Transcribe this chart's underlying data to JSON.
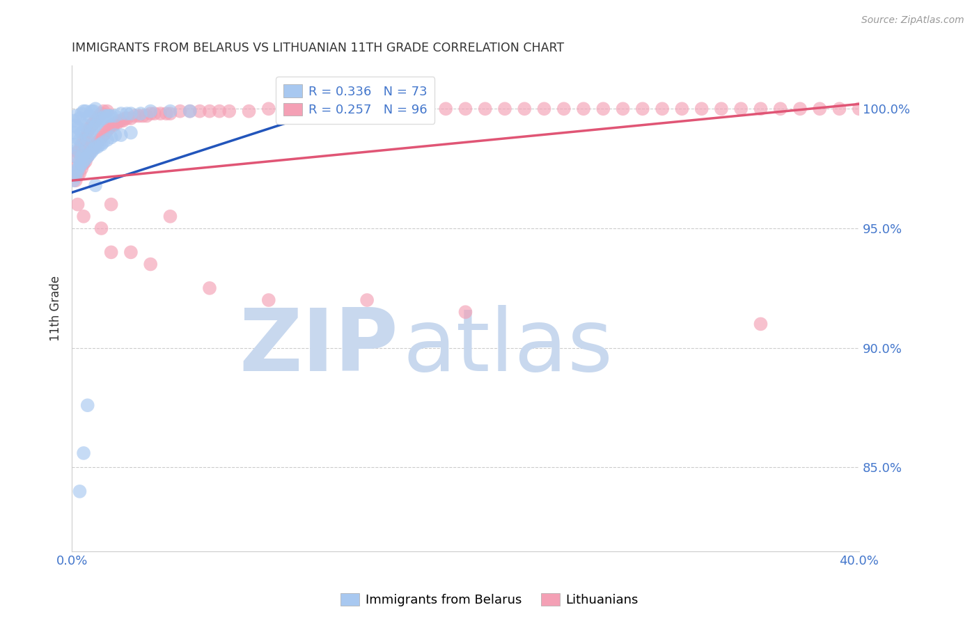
{
  "title": "IMMIGRANTS FROM BELARUS VS LITHUANIAN 11TH GRADE CORRELATION CHART",
  "source": "Source: ZipAtlas.com",
  "ylabel": "11th Grade",
  "ytick_labels": [
    "100.0%",
    "95.0%",
    "90.0%",
    "85.0%"
  ],
  "ytick_values": [
    1.0,
    0.95,
    0.9,
    0.85
  ],
  "xlim": [
    0.0,
    0.4
  ],
  "ylim": [
    0.815,
    1.018
  ],
  "legend_entry1": "R = 0.336   N = 73",
  "legend_entry2": "R = 0.257   N = 96",
  "color_blue": "#A8C8F0",
  "color_pink": "#F4A0B5",
  "line_blue": "#2255BB",
  "line_pink": "#E05575",
  "axis_label_color": "#4477CC",
  "watermark_zip": "ZIP",
  "watermark_atlas": "atlas",
  "watermark_color_zip": "#C8D8EE",
  "watermark_color_atlas": "#C8D8EE",
  "blue_scatter_x": [
    0.001,
    0.001,
    0.001,
    0.002,
    0.002,
    0.002,
    0.002,
    0.003,
    0.003,
    0.003,
    0.004,
    0.004,
    0.004,
    0.005,
    0.005,
    0.005,
    0.006,
    0.006,
    0.006,
    0.007,
    0.007,
    0.007,
    0.008,
    0.008,
    0.009,
    0.009,
    0.01,
    0.01,
    0.011,
    0.011,
    0.012,
    0.012,
    0.013,
    0.014,
    0.015,
    0.016,
    0.017,
    0.018,
    0.019,
    0.02,
    0.022,
    0.025,
    0.028,
    0.03,
    0.035,
    0.04,
    0.05,
    0.06,
    0.001,
    0.002,
    0.003,
    0.004,
    0.005,
    0.006,
    0.007,
    0.008,
    0.009,
    0.01,
    0.011,
    0.012,
    0.013,
    0.014,
    0.015,
    0.016,
    0.018,
    0.02,
    0.022,
    0.025,
    0.03,
    0.012,
    0.008,
    0.006,
    0.004
  ],
  "blue_scatter_y": [
    0.99,
    0.985,
    0.995,
    0.98,
    0.988,
    0.993,
    0.997,
    0.975,
    0.983,
    0.992,
    0.978,
    0.987,
    0.996,
    0.98,
    0.99,
    0.998,
    0.982,
    0.991,
    0.999,
    0.985,
    0.993,
    0.999,
    0.987,
    0.995,
    0.989,
    0.997,
    0.991,
    0.999,
    0.992,
    0.999,
    0.993,
    1.0,
    0.994,
    0.995,
    0.996,
    0.996,
    0.997,
    0.997,
    0.997,
    0.997,
    0.997,
    0.998,
    0.998,
    0.998,
    0.998,
    0.999,
    0.999,
    0.999,
    0.97,
    0.972,
    0.974,
    0.976,
    0.977,
    0.978,
    0.979,
    0.98,
    0.981,
    0.982,
    0.983,
    0.984,
    0.984,
    0.985,
    0.985,
    0.986,
    0.987,
    0.988,
    0.989,
    0.989,
    0.99,
    0.968,
    0.876,
    0.856,
    0.84
  ],
  "pink_scatter_x": [
    0.001,
    0.002,
    0.002,
    0.003,
    0.003,
    0.004,
    0.004,
    0.005,
    0.005,
    0.006,
    0.006,
    0.007,
    0.007,
    0.008,
    0.008,
    0.009,
    0.009,
    0.01,
    0.01,
    0.011,
    0.011,
    0.012,
    0.012,
    0.013,
    0.013,
    0.014,
    0.014,
    0.015,
    0.015,
    0.016,
    0.016,
    0.017,
    0.018,
    0.018,
    0.019,
    0.02,
    0.021,
    0.022,
    0.023,
    0.024,
    0.025,
    0.026,
    0.027,
    0.028,
    0.03,
    0.032,
    0.034,
    0.036,
    0.038,
    0.04,
    0.042,
    0.045,
    0.048,
    0.05,
    0.055,
    0.06,
    0.065,
    0.07,
    0.075,
    0.08,
    0.09,
    0.1,
    0.11,
    0.12,
    0.13,
    0.14,
    0.15,
    0.16,
    0.17,
    0.18,
    0.19,
    0.2,
    0.21,
    0.22,
    0.23,
    0.24,
    0.25,
    0.26,
    0.27,
    0.28,
    0.29,
    0.3,
    0.31,
    0.32,
    0.33,
    0.34,
    0.35,
    0.36,
    0.37,
    0.38,
    0.39,
    0.4,
    0.003,
    0.006,
    0.015,
    0.03
  ],
  "pink_scatter_y": [
    0.975,
    0.97,
    0.98,
    0.972,
    0.982,
    0.973,
    0.983,
    0.975,
    0.985,
    0.977,
    0.987,
    0.978,
    0.988,
    0.98,
    0.99,
    0.982,
    0.992,
    0.983,
    0.993,
    0.984,
    0.994,
    0.985,
    0.995,
    0.986,
    0.996,
    0.987,
    0.997,
    0.988,
    0.998,
    0.989,
    0.999,
    0.99,
    0.991,
    0.999,
    0.992,
    0.993,
    0.993,
    0.994,
    0.994,
    0.995,
    0.995,
    0.995,
    0.996,
    0.996,
    0.996,
    0.997,
    0.997,
    0.997,
    0.997,
    0.998,
    0.998,
    0.998,
    0.998,
    0.998,
    0.999,
    0.999,
    0.999,
    0.999,
    0.999,
    0.999,
    0.999,
    1.0,
    1.0,
    1.0,
    1.0,
    1.0,
    1.0,
    1.0,
    1.0,
    1.0,
    1.0,
    1.0,
    1.0,
    1.0,
    1.0,
    1.0,
    1.0,
    1.0,
    1.0,
    1.0,
    1.0,
    1.0,
    1.0,
    1.0,
    1.0,
    1.0,
    1.0,
    1.0,
    1.0,
    1.0,
    1.0,
    1.0,
    0.96,
    0.955,
    0.95,
    0.94
  ],
  "pink_scatter_x2": [
    0.02,
    0.05,
    0.15,
    0.02,
    0.04,
    0.07,
    0.1,
    0.2,
    0.35
  ],
  "pink_scatter_y2": [
    0.96,
    0.955,
    0.92,
    0.94,
    0.935,
    0.925,
    0.92,
    0.915,
    0.91
  ],
  "blue_line_x": [
    0.0,
    0.15
  ],
  "blue_line_y": [
    0.965,
    1.005
  ],
  "pink_line_x": [
    0.0,
    0.4
  ],
  "pink_line_y": [
    0.97,
    1.002
  ]
}
